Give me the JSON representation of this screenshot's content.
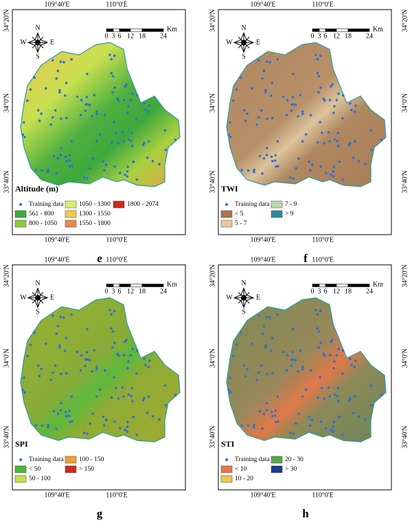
{
  "graticule": {
    "lon": [
      "109°40'E",
      "110°0'E"
    ],
    "lat": [
      "34°20'N",
      "34°0'N",
      "33°40'N"
    ]
  },
  "compass": {
    "n": "N",
    "s": "S",
    "e": "E",
    "w": "W"
  },
  "scale": {
    "unit": "Km",
    "ticks": [
      "0",
      "3",
      "6",
      "12",
      "18",
      "24"
    ]
  },
  "panels": [
    {
      "letter": "e",
      "legend_title": "Altitude (m)",
      "legend": [
        {
          "label": "Training data",
          "color": "#2f6fd8"
        },
        {
          "label": "561 - 800",
          "color": "#3caa3c"
        },
        {
          "label": "800 - 1050",
          "color": "#8ccc3c"
        },
        {
          "label": "1050 - 1300",
          "color": "#dcec6c"
        },
        {
          "label": "1300 - 1550",
          "color": "#f4c84c"
        },
        {
          "label": "1550 - 1800",
          "color": "#e8884c"
        },
        {
          "label": "1800 - 2074",
          "color": "#cc2a1c"
        }
      ]
    },
    {
      "letter": "f",
      "legend_title": "TWI",
      "legend": [
        {
          "label": "Training data",
          "color": "#2f6fd8"
        },
        {
          "label": "< 5",
          "color": "#a8744c"
        },
        {
          "label": "5 - 7",
          "color": "#e8c89c"
        },
        {
          "label": "7 - 9",
          "color": "#bcd8b0"
        },
        {
          "label": "> 9",
          "color": "#2c8c9c"
        }
      ]
    },
    {
      "letter": "g",
      "legend_title": "SPI",
      "legend": [
        {
          "label": "Training data",
          "color": "#2f6fd8"
        },
        {
          "label": "< 50",
          "color": "#4cb83c"
        },
        {
          "label": "50 - 100",
          "color": "#c8dc4c"
        },
        {
          "label": "100 - 150",
          "color": "#f0a030"
        },
        {
          "label": "> 150",
          "color": "#cc2a1c"
        }
      ]
    },
    {
      "letter": "h",
      "legend_title": "STI",
      "legend": [
        {
          "label": "Training data",
          "color": "#2f6fd8"
        },
        {
          "label": "< 10",
          "color": "#e8784c"
        },
        {
          "label": "10 - 20",
          "color": "#e8c84c"
        },
        {
          "label": "20 - 30",
          "color": "#58a848"
        },
        {
          "label": "> 30",
          "color": "#1c3c8c"
        }
      ]
    }
  ]
}
